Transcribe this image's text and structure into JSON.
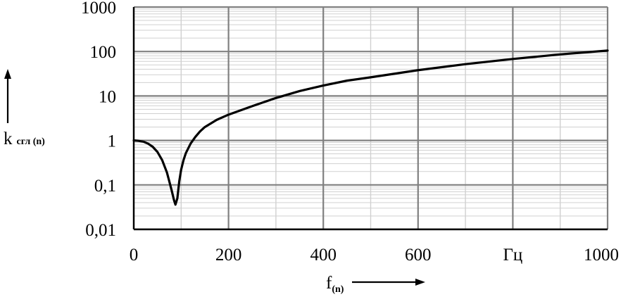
{
  "chart_data": {
    "type": "line",
    "title": "",
    "xlabel": {
      "main": "f",
      "sub": "(n)"
    },
    "ylabel": {
      "main": "k",
      "sub": "сгл (n)"
    },
    "xlim": [
      0,
      1000
    ],
    "ylim": [
      0.01,
      1000
    ],
    "yscale": "log",
    "grid": true,
    "legend": "none",
    "x_ticks": [
      {
        "value": 0,
        "label": "0"
      },
      {
        "value": 200,
        "label": "200"
      },
      {
        "value": 400,
        "label": "400"
      },
      {
        "value": 600,
        "label": "600"
      },
      {
        "value": 800,
        "label": "Гц"
      },
      {
        "value": 1000,
        "label": "1000"
      }
    ],
    "y_ticks": [
      {
        "value": 0.01,
        "label": "0,01"
      },
      {
        "value": 0.1,
        "label": "0,1"
      },
      {
        "value": 1,
        "label": "1"
      },
      {
        "value": 10,
        "label": "10"
      },
      {
        "value": 100,
        "label": "100"
      },
      {
        "value": 1000,
        "label": "1000"
      }
    ],
    "series": [
      {
        "color": "#000000",
        "x": [
          0,
          10,
          20,
          30,
          40,
          50,
          60,
          70,
          75,
          80,
          85,
          88,
          92,
          96,
          100,
          105,
          110,
          120,
          130,
          140,
          150,
          175,
          200,
          250,
          300,
          350,
          400,
          450,
          500,
          600,
          700,
          800,
          900,
          1000
        ],
        "y": [
          1.0,
          0.98,
          0.94,
          0.85,
          0.72,
          0.55,
          0.36,
          0.19,
          0.12,
          0.075,
          0.045,
          0.036,
          0.05,
          0.12,
          0.22,
          0.36,
          0.52,
          0.85,
          1.2,
          1.6,
          2.0,
          2.9,
          3.8,
          5.9,
          9.0,
          12.9,
          17.2,
          22.1,
          26.3,
          38.0,
          52.0,
          68.0,
          86.0,
          105.0
        ]
      }
    ]
  },
  "colors": {
    "grid_major": "#808080",
    "grid_minor": "#d0d0d0",
    "curve": "#000000",
    "axis": "#000000"
  }
}
